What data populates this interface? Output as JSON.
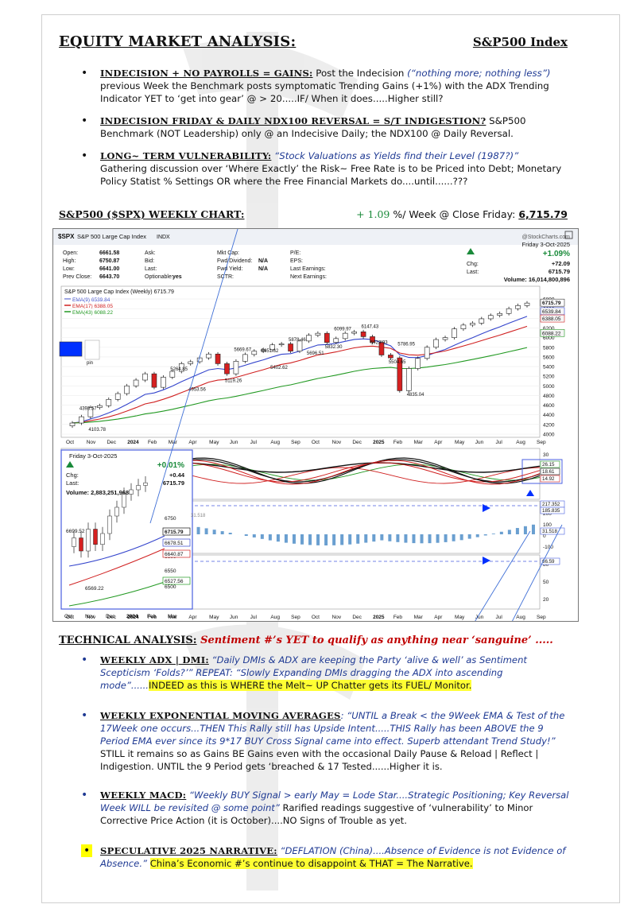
{
  "header": {
    "title": "EQUITY MARKET ANALYSIS",
    "colon": ":",
    "index": "S&P500 Index"
  },
  "bullets": [
    {
      "keyword": "INDECISION + NO PAYROLLS = GAINS:",
      "pre": " Post the Indecision ",
      "italic": "(“nothing more; nothing less”)",
      "post": " previous Week the Benchmark posts symptomatic Trending Gains (+1%) with the ADX Trending Indicator YET to ‘get into gear’ @ > 20.....IF/ When it does.....Higher still?"
    },
    {
      "keyword": "INDECISION FRIDAY & DAILY NDX100 REVERSAL = S/T INDIGESTION?",
      "post": "  S&P500 Benchmark (NOT Leadership) only @ an Indecisive Daily; the NDX100 @ Daily Reversal."
    },
    {
      "keyword": "LONG~ TERM VULNERABILITY:",
      "italic": "“Stock Valuations as Yields find their Level (1987?)”",
      "post": "Gathering discussion over ‘Where Exactly’ the Risk~ Free Rate is to be Priced into Debt; Monetary Policy Statist % Settings OR where the Free Financial Markets do....until......???"
    }
  ],
  "chart_heading": {
    "label": "S&P500 ($SPX) WEEKLY CHART:",
    "pct": "+ 1.09",
    "mid": " %/ Week @ Close Friday: ",
    "close": "6,715.79"
  },
  "chart_header": {
    "symbol": "$SPX",
    "name": "S&P 500 Large Cap Index",
    "exchange": "INDX",
    "brand": "@StockCharts.com",
    "date": "Friday  3-Oct-2025",
    "change_pct": "+1.09%",
    "chg_label": "Chg:",
    "chg": "+72.09",
    "last_label": "Last:",
    "last": "6715.79",
    "volume": "Volume: 16,014,800,896",
    "rows": [
      [
        "Open:",
        "6661.58",
        "Ask:",
        "",
        "Mkt Cap:",
        "",
        "P/E:",
        ""
      ],
      [
        "High:",
        "6750.87",
        "Bid:",
        "",
        "Fwd Dividend:",
        "N/A",
        "EPS:",
        ""
      ],
      [
        "Low:",
        "6641.00",
        "Last:",
        "",
        "Fwd Yield:",
        "N/A",
        "Last Earnings:",
        ""
      ],
      [
        "Prev Close:",
        "6643.70",
        "Optionable:",
        "yes",
        "SCTR:",
        "",
        "Next Earnings:",
        ""
      ]
    ],
    "legend_title": "S&P 500 Large Cap Index (Weekly) 6715.79",
    "legend": [
      {
        "label": "EMA(9) 6539.84",
        "color": "#3344cc"
      },
      {
        "label": "EMA(17) 6388.05",
        "color": "#d02020"
      },
      {
        "label": "EMA(43) 6088.22",
        "color": "#229922"
      }
    ],
    "adx_legend": "ADX(14) 18.61  +DI 26.15  -DI 14.92",
    "pin": "pin"
  },
  "chart_data": {
    "type": "candlestick",
    "x_labels": [
      "Oct",
      "Nov",
      "Dec",
      "2024",
      "Feb",
      "Mar",
      "Apr",
      "May",
      "Jun",
      "Jul",
      "Aug",
      "Sep",
      "Oct",
      "Nov",
      "Dec",
      "2025",
      "Feb",
      "Mar",
      "Apr",
      "May",
      "Jun",
      "Jul",
      "Aug",
      "Sep"
    ],
    "y_ticks": [
      "6800",
      "6600",
      "6400",
      "6200",
      "6000",
      "5800",
      "5600",
      "5400",
      "5200",
      "5000",
      "4800",
      "4600",
      "4400",
      "4200",
      "4000"
    ],
    "ylim": [
      4000,
      6900
    ],
    "price_annotations": [
      "4393.57",
      "4103.78",
      "5264.85",
      "4953.56",
      "5669.67",
      "5119.26",
      "5651.62",
      "5402.62",
      "5878.46",
      "5696.51",
      "6099.97",
      "5832.30",
      "6147.43",
      "5923.93",
      "5786.95",
      "5504.65",
      "4835.04"
    ],
    "right_labels": [
      "6715.79",
      "6539.84",
      "6388.05",
      "6088.22"
    ],
    "weekly_close": [
      4230,
      4360,
      4550,
      4590,
      4720,
      4840,
      5000,
      5120,
      5250,
      4970,
      5180,
      5300,
      5460,
      5500,
      5580,
      5660,
      5460,
      5250,
      5510,
      5650,
      5720,
      5750,
      5850,
      5870,
      5720,
      5930,
      6050,
      6090,
      5900,
      5980,
      6090,
      6120,
      6020,
      5900,
      5640,
      5580,
      4900,
      5360,
      5570,
      5800,
      5960,
      6000,
      6180,
      6260,
      6300,
      6390,
      6460,
      6500,
      6600,
      6664,
      6716
    ],
    "adx_ticks": [
      "30",
      "20"
    ],
    "adx_labels": [
      "26.15",
      "18.61",
      "14.92"
    ],
    "macd_labels": [
      "217.352",
      "185.835",
      "31.518"
    ],
    "macd_ticks": [
      "200",
      "100",
      "0",
      "-100"
    ],
    "rsi_ticks": [
      "80",
      "50",
      "20"
    ],
    "rsi_label": "66.59",
    "inset": {
      "date": "Friday  3-Oct-2025",
      "change_pct": "+0.01%",
      "chg_label": "Chg:",
      "chg": "+0.44",
      "last_label": "Last:",
      "last": "6715.79",
      "volume": "Volume:  2,883,251,968",
      "annotations": [
        "6699.52",
        "6569.22"
      ],
      "y_ticks": [
        "6750",
        "6600",
        "6550",
        "6500"
      ],
      "y_labels": [
        "6715.79",
        "6678.51",
        "6640.87",
        "6527.56"
      ],
      "x_labels": [
        "Oct",
        "Nov",
        "Dec",
        "2024",
        "Feb",
        "Mar"
      ],
      "value_label": "31.518"
    }
  },
  "technical": {
    "label": "TECHNICAL ANALYSIS:",
    "sentiment": " Sentiment #’s YET to qualify as anything near ‘sanguine’ .....",
    "items": [
      {
        "keyword": "WEEKLY ADX | DMI:",
        "italic": " “Daily DMIs & ADX are keeping the Party ‘alive & well’ as Sentiment Scepticism ‘Folds?’”  REPEAT: “Slowly Expanding DMIs dragging the ADX into ascending mode”......",
        "highlight": "INDEED as this is WHERE the Melt~ UP Chatter gets its FUEL/ Monitor."
      },
      {
        "keyword": "WEEKLY EXPONENTIAL MOVING AVERAGES",
        "italic": ": “UNTIL a Break < the 9Week EMA & Test of the 17Week one occurs...THEN This Rally still has Upside Intent.....THIS Rally has been ABOVE the 9 Period EMA ever since its 9*17 BUY Cross Signal came into effect. Superb attendant Trend Study!”",
        "post": "    STILL it remains so as Gains BE Gains even with the occasional Daily Pause & Reload | Reflect | Indigestion. UNTIL the 9 Period gets ‘breached & 17 Tested......Higher it is."
      },
      {
        "keyword": "WEEKLY MACD:",
        "italic": " “Weekly BUY Signal > early May = Lode Star....Strategic Positioning; Key Reversal Week WILL be revisited @ some point”",
        "post": "          Rarified readings suggestive of ‘vulnerability’ to Minor Corrective Price Action (it is October)....NO Signs of Trouble as yet."
      },
      {
        "keyword": "SPECULATIVE 2025 NARRATIVE:",
        "italic": " “DEFLATION (China)....Absence of Evidence is not Evidence of Absence.”",
        "highlight": "China’s Economic #’s continue to disappoint & THAT = The Narrative."
      }
    ]
  }
}
